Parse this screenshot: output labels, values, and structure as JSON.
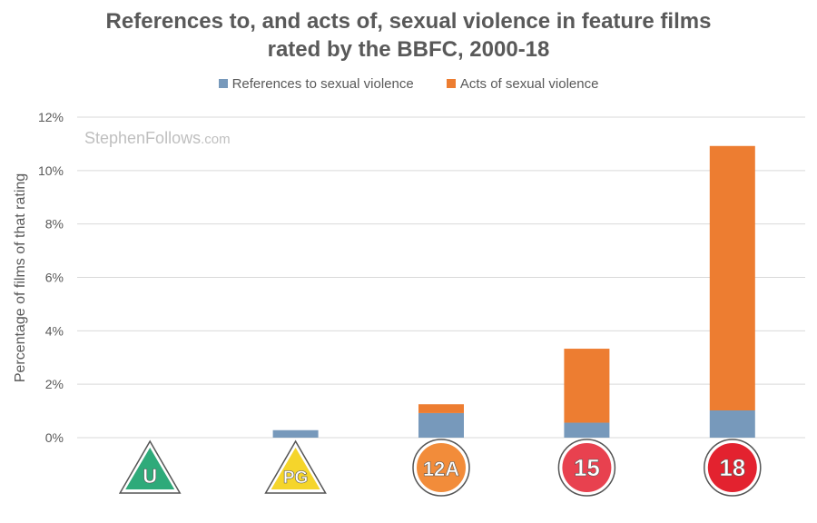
{
  "chart_data": {
    "type": "bar",
    "stacked": true,
    "title_line1": "References to, and acts of, sexual violence in feature films",
    "title_line2": "rated by the BBFC, 2000-18",
    "ylabel": "Percentage of films of that rating",
    "xlabel": "",
    "categories": [
      "U",
      "PG",
      "12A",
      "15",
      "18"
    ],
    "series": [
      {
        "name": "References to sexual violence",
        "color": "#7799BB",
        "values": [
          0.0,
          0.28,
          0.92,
          0.56,
          1.02
        ]
      },
      {
        "name": "Acts of sexual violence",
        "color": "#ED7D31",
        "values": [
          0.0,
          0.0,
          0.33,
          2.77,
          9.9
        ]
      }
    ],
    "ylim": [
      0,
      12
    ],
    "yticks": [
      0,
      2,
      4,
      6,
      8,
      10,
      12
    ],
    "ytick_labels": [
      "0%",
      "2%",
      "4%",
      "6%",
      "8%",
      "10%",
      "12%"
    ],
    "grid": true,
    "legend_position": "top-center"
  },
  "watermark": {
    "name": "StephenFollows",
    "domain": ".com"
  },
  "badges": [
    {
      "label": "U",
      "shape": "triangle",
      "fill": "#2EAA7A"
    },
    {
      "label": "PG",
      "shape": "triangle",
      "fill": "#F5D52B"
    },
    {
      "label": "12A",
      "shape": "circle",
      "fill": "#F28C3A"
    },
    {
      "label": "15",
      "shape": "circle",
      "fill": "#E8414F"
    },
    {
      "label": "18",
      "shape": "circle",
      "fill": "#E3222F"
    }
  ]
}
